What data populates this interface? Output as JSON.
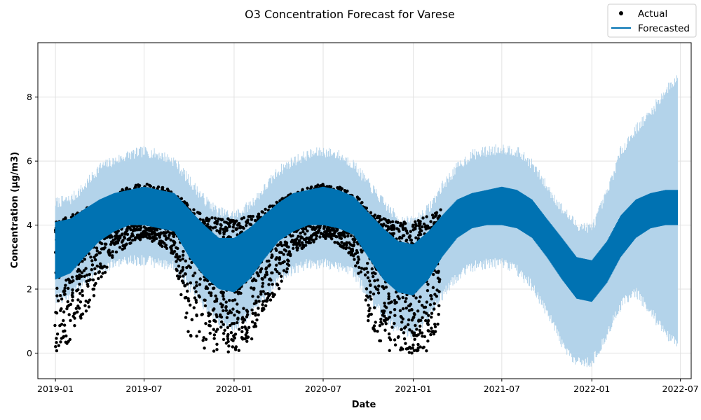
{
  "chart_data": {
    "type": "line",
    "title": "O3 Concentration Forecast for Varese",
    "xlabel": "Date",
    "ylabel": "Concentration (µg/m3)",
    "x_ticks": [
      "2019-01",
      "2019-07",
      "2020-01",
      "2020-07",
      "2021-01",
      "2021-07",
      "2022-01",
      "2022-07"
    ],
    "y_ticks": [
      0,
      2,
      4,
      6,
      8
    ],
    "xlim": [
      "2018-11-26",
      "2022-07-23"
    ],
    "ylim": [
      -0.8,
      9.7
    ],
    "grid": true,
    "legend": {
      "position": "top-right",
      "entries": [
        "Actual",
        "Forecasted"
      ]
    },
    "colors": {
      "actual": "#000000",
      "forecast": "#0072B2",
      "interval": "#A9CDE6"
    },
    "series": [
      {
        "name": "Forecasted",
        "x": [
          "2019-01-01",
          "2019-02-01",
          "2019-03-01",
          "2019-04-01",
          "2019-05-01",
          "2019-06-01",
          "2019-07-01",
          "2019-08-01",
          "2019-09-01",
          "2019-10-01",
          "2019-11-01",
          "2019-12-01",
          "2020-01-01",
          "2020-02-01",
          "2020-03-01",
          "2020-04-01",
          "2020-05-01",
          "2020-06-01",
          "2020-07-01",
          "2020-08-01",
          "2020-09-01",
          "2020-10-01",
          "2020-11-01",
          "2020-12-01",
          "2021-01-01",
          "2021-02-01",
          "2021-03-01",
          "2021-04-01",
          "2021-05-01",
          "2021-06-01",
          "2021-07-01",
          "2021-08-01",
          "2021-09-01",
          "2021-10-01",
          "2021-11-01",
          "2021-12-01",
          "2022-01-01",
          "2022-02-01",
          "2022-03-01",
          "2022-04-01",
          "2022-05-01",
          "2022-06-01",
          "2022-06-25"
        ],
        "lower": [
          2.3,
          2.5,
          3.0,
          3.5,
          3.8,
          4.0,
          4.0,
          3.9,
          3.8,
          3.0,
          2.4,
          2.0,
          1.9,
          2.3,
          2.9,
          3.5,
          3.8,
          4.0,
          4.0,
          3.9,
          3.7,
          3.0,
          2.3,
          1.9,
          1.8,
          2.3,
          3.0,
          3.6,
          3.9,
          4.0,
          4.0,
          3.9,
          3.6,
          3.0,
          2.3,
          1.7,
          1.6,
          2.2,
          3.0,
          3.6,
          3.9,
          4.0,
          4.0
        ],
        "upper": [
          4.1,
          4.2,
          4.5,
          4.8,
          5.0,
          5.1,
          5.2,
          5.1,
          5.0,
          4.5,
          4.0,
          3.6,
          3.6,
          3.9,
          4.3,
          4.7,
          5.0,
          5.1,
          5.2,
          5.1,
          4.9,
          4.4,
          3.9,
          3.5,
          3.4,
          3.8,
          4.3,
          4.8,
          5.0,
          5.1,
          5.2,
          5.1,
          4.8,
          4.2,
          3.6,
          3.0,
          2.9,
          3.5,
          4.3,
          4.8,
          5.0,
          5.1,
          5.1
        ],
        "interval_lower": [
          1.7,
          1.8,
          2.2,
          2.6,
          2.8,
          2.9,
          2.9,
          2.8,
          2.7,
          2.1,
          1.5,
          1.0,
          0.8,
          1.2,
          1.7,
          2.3,
          2.6,
          2.8,
          2.8,
          2.7,
          2.5,
          1.8,
          1.2,
          0.7,
          0.6,
          1.1,
          1.8,
          2.4,
          2.7,
          2.8,
          2.8,
          2.6,
          2.1,
          1.3,
          0.3,
          -0.3,
          -0.3,
          0.6,
          1.5,
          1.9,
          1.3,
          0.6,
          0.3
        ],
        "interval_upper": [
          4.7,
          4.8,
          5.2,
          5.8,
          6.0,
          6.2,
          6.3,
          6.2,
          6.0,
          5.4,
          4.8,
          4.4,
          4.3,
          4.6,
          5.1,
          5.7,
          6.0,
          6.2,
          6.3,
          6.2,
          5.9,
          5.3,
          4.7,
          4.2,
          4.1,
          4.5,
          5.2,
          5.8,
          6.2,
          6.3,
          6.4,
          6.3,
          5.9,
          5.2,
          4.5,
          4.0,
          3.9,
          5.0,
          6.3,
          7.0,
          7.5,
          8.2,
          8.6
        ]
      },
      {
        "name": "Actual",
        "x": [
          "2019-01-01",
          "2019-02-01",
          "2019-03-01",
          "2019-04-01",
          "2019-05-01",
          "2019-06-01",
          "2019-07-01",
          "2019-08-01",
          "2019-09-01",
          "2019-10-01",
          "2019-11-01",
          "2019-12-01",
          "2020-01-01",
          "2020-02-01",
          "2020-03-01",
          "2020-04-01",
          "2020-05-01",
          "2020-06-01",
          "2020-07-01",
          "2020-08-01",
          "2020-09-01",
          "2020-10-01",
          "2020-11-01",
          "2020-12-01",
          "2021-01-01",
          "2021-02-01",
          "2021-02-25"
        ],
        "min": [
          0.0,
          0.3,
          1.1,
          2.2,
          3.0,
          3.4,
          3.6,
          3.4,
          3.0,
          0.4,
          0.1,
          0.0,
          0.0,
          0.1,
          1.3,
          2.0,
          3.0,
          3.4,
          3.6,
          3.4,
          3.0,
          1.0,
          0.0,
          0.0,
          0.0,
          0.0,
          1.0
        ],
        "max": [
          4.1,
          4.3,
          4.5,
          4.7,
          5.0,
          5.2,
          5.3,
          5.2,
          5.1,
          4.6,
          4.3,
          4.2,
          4.2,
          4.3,
          4.5,
          4.8,
          5.0,
          5.2,
          5.3,
          5.2,
          5.0,
          4.5,
          4.2,
          4.1,
          4.1,
          4.3,
          4.5
        ]
      }
    ]
  }
}
